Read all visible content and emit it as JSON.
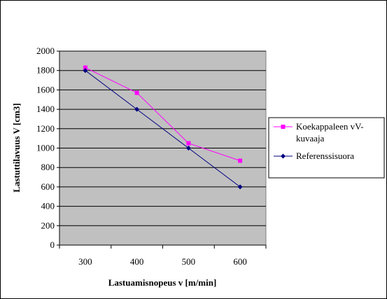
{
  "chart_data": {
    "type": "line",
    "xlabel": "Lastuamisnopeus v [m/min]",
    "ylabel": "Lastuttilavuus V [cm3]",
    "x_categories": [
      "300",
      "400",
      "500",
      "600"
    ],
    "yticks": [
      "0",
      "200",
      "400",
      "600",
      "800",
      "1000",
      "1200",
      "1400",
      "1600",
      "1800",
      "2000"
    ],
    "ylim": [
      0,
      2000
    ],
    "grid": "horizontal",
    "plot_background": "#c0c0c0",
    "legend_position": "right",
    "series": [
      {
        "name_lines": [
          "Koekappaleen vV-",
          "kuvaaja"
        ],
        "color": "#ff00ff",
        "marker": "square",
        "values": [
          1830,
          1570,
          1050,
          870
        ]
      },
      {
        "name_lines": [
          "Referenssisuora"
        ],
        "color": "#000080",
        "marker": "diamond",
        "values": [
          1800,
          1400,
          1000,
          600
        ]
      }
    ]
  }
}
